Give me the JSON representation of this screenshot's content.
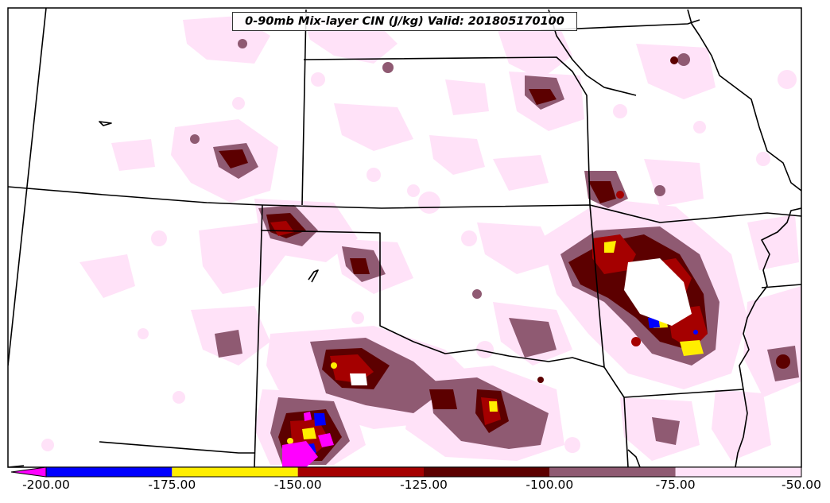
{
  "title": "0-90mb Mix-layer CIN (J/kg) Valid: 201805170100",
  "colorbar": {
    "ticks": [
      "-200.00",
      "-175.00",
      "-150.00",
      "-125.00",
      "-100.00",
      "-75.00",
      "-50.00"
    ],
    "bins": [
      {
        "from": -200,
        "to": -175,
        "color": "#0000ff"
      },
      {
        "from": -175,
        "to": -150,
        "color": "#ffee00"
      },
      {
        "from": -150,
        "to": -125,
        "color": "#a50000"
      },
      {
        "from": -125,
        "to": -100,
        "color": "#5c0000"
      },
      {
        "from": -100,
        "to": -75,
        "color": "#8f5a72"
      },
      {
        "from": -75,
        "to": -50,
        "color": "#ffe2f8"
      }
    ],
    "extend_color": "#ff00ff"
  },
  "colors": {
    "light": "#ffe2f8",
    "mauve": "#8f5a72",
    "dark": "#5c0000",
    "red": "#a50000",
    "yellow": "#ffee00",
    "blue": "#0000ff",
    "magenta": "#ff00ff"
  }
}
